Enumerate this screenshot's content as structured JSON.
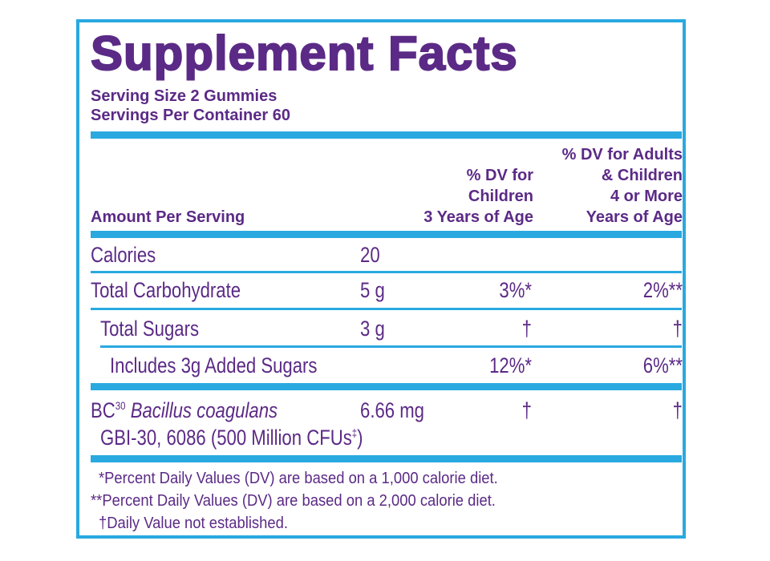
{
  "title": "Supplement Facts",
  "serving": {
    "size": "Serving Size 2 Gummies",
    "per_container": "Servings Per Container 60"
  },
  "header": {
    "amount_per_serving": "Amount Per Serving",
    "dv_children": [
      "% DV for",
      "Children",
      "3 Years of Age"
    ],
    "dv_adults": [
      "% DV for Adults",
      "& Children",
      "4 or More",
      "Years of Age"
    ]
  },
  "rows": [
    {
      "label": "Calories",
      "amount": "20",
      "dv_children": "",
      "dv_adults": ""
    },
    {
      "label": "Total Carbohydrate",
      "amount": "5 g",
      "dv_children": "3%*",
      "dv_adults": "2%**"
    },
    {
      "label": "Total Sugars",
      "amount": "3 g",
      "dv_children": "†",
      "dv_adults": "†"
    },
    {
      "label": "Includes 3g Added Sugars",
      "amount": "",
      "dv_children": "12%*",
      "dv_adults": "6%**"
    }
  ],
  "probiotic": {
    "prefix": "BC",
    "sup": "30",
    "name": "Bacillus coagulans",
    "strain": "GBI-30, 6086 (500 Million CFUs",
    "strain_sup": "‡",
    "strain_end": ")",
    "amount": "6.66 mg",
    "dv_children": "†",
    "dv_adults": "†"
  },
  "footnotes": [
    "*Percent Daily Values (DV) are based on a 1,000 calorie diet.",
    "**Percent Daily Values (DV) are based on a 2,000 calorie diet.",
    "†Daily Value not established."
  ],
  "colors": {
    "purple": "#5b2a86",
    "blue": "#29a9e0"
  }
}
